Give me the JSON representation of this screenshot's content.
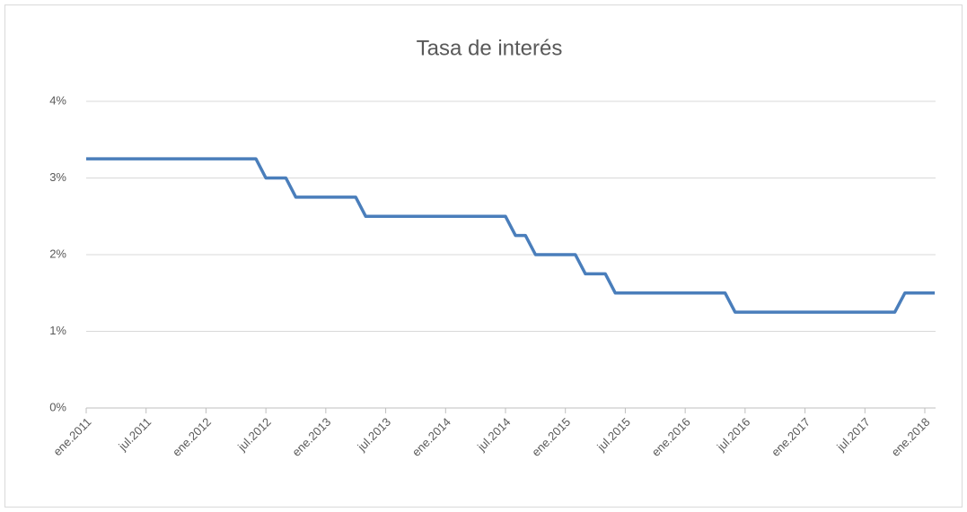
{
  "chart_data": {
    "type": "line",
    "title": "Tasa de interés",
    "categories": [
      "ene.2011",
      null,
      null,
      null,
      null,
      null,
      "jul.2011",
      null,
      null,
      null,
      null,
      null,
      "ene.2012",
      null,
      null,
      null,
      null,
      null,
      "jul.2012",
      null,
      null,
      null,
      null,
      null,
      "ene.2013",
      null,
      null,
      null,
      null,
      null,
      "jul.2013",
      null,
      null,
      null,
      null,
      null,
      "ene.2014",
      null,
      null,
      null,
      null,
      null,
      "jul.2014",
      null,
      null,
      null,
      null,
      null,
      "ene.2015",
      null,
      null,
      null,
      null,
      null,
      "jul.2015",
      null,
      null,
      null,
      null,
      null,
      "ene.2016",
      null,
      null,
      null,
      null,
      null,
      "jul.2016",
      null,
      null,
      null,
      null,
      null,
      "ene.2017",
      null,
      null,
      null,
      null,
      null,
      "jul.2017",
      null,
      null,
      null,
      null,
      null,
      "ene.2018",
      null
    ],
    "series": [
      {
        "color": "#4a7ebb",
        "values": [
          3.25,
          3.25,
          3.25,
          3.25,
          3.25,
          3.25,
          3.25,
          3.25,
          3.25,
          3.25,
          3.25,
          3.25,
          3.25,
          3.25,
          3.25,
          3.25,
          3.25,
          3.25,
          3.0,
          3.0,
          3.0,
          2.75,
          2.75,
          2.75,
          2.75,
          2.75,
          2.75,
          2.75,
          2.5,
          2.5,
          2.5,
          2.5,
          2.5,
          2.5,
          2.5,
          2.5,
          2.5,
          2.5,
          2.5,
          2.5,
          2.5,
          2.5,
          2.5,
          2.25,
          2.25,
          2.0,
          2.0,
          2.0,
          2.0,
          2.0,
          1.75,
          1.75,
          1.75,
          1.5,
          1.5,
          1.5,
          1.5,
          1.5,
          1.5,
          1.5,
          1.5,
          1.5,
          1.5,
          1.5,
          1.5,
          1.25,
          1.25,
          1.25,
          1.25,
          1.25,
          1.25,
          1.25,
          1.25,
          1.25,
          1.25,
          1.25,
          1.25,
          1.25,
          1.25,
          1.25,
          1.25,
          1.25,
          1.5,
          1.5,
          1.5,
          1.5
        ]
      }
    ],
    "ylim": [
      0,
      4
    ],
    "yticks": [
      {
        "value": 0,
        "label": "0%"
      },
      {
        "value": 1,
        "label": "1%"
      },
      {
        "value": 2,
        "label": "2%"
      },
      {
        "value": 3,
        "label": "3%"
      },
      {
        "value": 4,
        "label": "4%"
      }
    ],
    "grid": true
  }
}
